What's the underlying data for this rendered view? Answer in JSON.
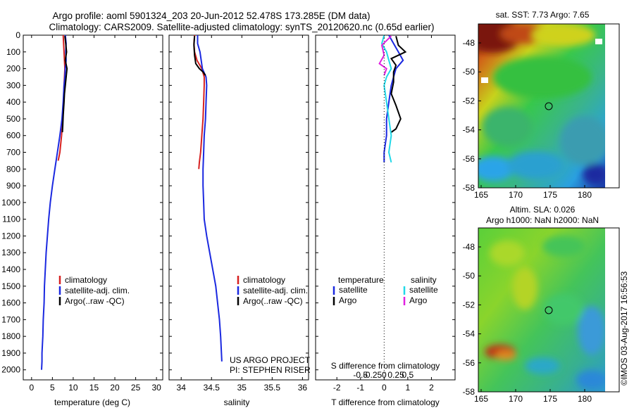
{
  "header": {
    "line1": "Argo profile: aoml 5901324_203 20-Jun-2012 52.478S 173.285E (DM data)",
    "line2": "Climatology: CARS2009. Satellite-adjusted climatology: synTS_20120620.nc (0.65d earlier)"
  },
  "colors": {
    "climatology": "#d62020",
    "satellite": "#1a28e0",
    "argo": "#000000",
    "argo_salinity_diff": "#e020e0",
    "satellite_salinity_diff": "#20d8e8"
  },
  "chart_data": [
    {
      "type": "line",
      "id": "temperature",
      "xlabel": "temperature (deg C)",
      "xticks": [
        0,
        5,
        10,
        15,
        20,
        25,
        30
      ],
      "xlim": [
        -2,
        31.5
      ],
      "yticks": [
        0,
        100,
        200,
        300,
        400,
        500,
        600,
        700,
        800,
        900,
        1000,
        1100,
        1200,
        1300,
        1400,
        1500,
        1600,
        1700,
        1800,
        1900,
        2000
      ],
      "ylim": [
        2060,
        0
      ],
      "legend": [
        "climatology",
        "satellite-adj. clim.",
        "Argo(..raw -QC)"
      ],
      "series": [
        {
          "name": "climatology",
          "color_key": "climatology",
          "x": [
            7.6,
            7.7,
            7.8,
            7.9,
            8.0,
            7.9,
            7.8,
            7.7,
            7.5,
            7.2,
            6.8,
            6.4
          ],
          "y": [
            0,
            50,
            100,
            150,
            200,
            250,
            300,
            400,
            500,
            600,
            700,
            750
          ]
        },
        {
          "name": "satellite-adj. clim.",
          "color_key": "satellite",
          "x": [
            8.1,
            8.3,
            8.2,
            8.3,
            8.1,
            8.0,
            7.8,
            7.6,
            7.3,
            6.8,
            6.2,
            5.6,
            5.0,
            4.5,
            4.1,
            3.8,
            3.5,
            3.3,
            3.1,
            3.0,
            2.8,
            2.7,
            2.6,
            2.5,
            2.5,
            2.4
          ],
          "y": [
            0,
            50,
            100,
            150,
            200,
            250,
            300,
            400,
            500,
            600,
            700,
            800,
            900,
            1000,
            1100,
            1200,
            1300,
            1400,
            1500,
            1600,
            1700,
            1800,
            1850,
            1900,
            1950,
            2000
          ]
        },
        {
          "name": "Argo(..raw -QC)",
          "color_key": "argo",
          "x": [
            8.0,
            8.2,
            8.4,
            8.1,
            8.5,
            8.3,
            8.1,
            7.9,
            7.8,
            7.6,
            7.5,
            7.4
          ],
          "y": [
            5,
            50,
            100,
            150,
            200,
            250,
            300,
            350,
            400,
            480,
            540,
            580
          ]
        }
      ]
    },
    {
      "type": "line",
      "id": "salinity",
      "xlabel": "salinity",
      "xticks": [
        34,
        34.5,
        35,
        35.5,
        36
      ],
      "xlim": [
        33.8,
        36.1
      ],
      "yticks": [
        0,
        100,
        200,
        300,
        400,
        500,
        600,
        700,
        800,
        900,
        1000,
        1100,
        1200,
        1300,
        1400,
        1500,
        1600,
        1700,
        1800,
        1900,
        2000
      ],
      "ylim": [
        2060,
        0
      ],
      "legend": [
        "climatology",
        "satellite-adj. clim.",
        "Argo(..raw -QC)"
      ],
      "series": [
        {
          "name": "climatology",
          "color_key": "climatology",
          "x": [
            34.22,
            34.21,
            34.22,
            34.26,
            34.34,
            34.38,
            34.38,
            34.37,
            34.36,
            34.34,
            34.32,
            34.3,
            34.29
          ],
          "y": [
            0,
            50,
            100,
            150,
            200,
            250,
            300,
            400,
            500,
            600,
            700,
            760,
            800
          ]
        },
        {
          "name": "satellite-adj. clim.",
          "color_key": "satellite",
          "x": [
            34.27,
            34.27,
            34.31,
            34.33,
            34.35,
            34.41,
            34.42,
            34.41,
            34.4,
            34.38,
            34.37,
            34.36,
            34.36,
            34.37,
            34.38,
            34.42,
            34.47,
            34.52,
            34.57,
            34.6,
            34.63,
            34.65,
            34.67
          ],
          "y": [
            0,
            50,
            100,
            150,
            200,
            250,
            300,
            400,
            500,
            600,
            700,
            800,
            900,
            1000,
            1100,
            1200,
            1300,
            1400,
            1500,
            1600,
            1700,
            1800,
            1950
          ]
        },
        {
          "name": "Argo(..raw -QC)",
          "color_key": "argo",
          "x": [
            34.22,
            34.21,
            34.22,
            34.24,
            34.3,
            34.36,
            34.4
          ],
          "y": [
            5,
            60,
            120,
            170,
            200,
            220,
            240
          ]
        }
      ]
    },
    {
      "type": "line",
      "id": "difference",
      "xlabel": "T difference from climatology",
      "xlabel_top": "S difference from climatology",
      "xticks_T": [
        -2,
        -1,
        0,
        1,
        2
      ],
      "xticks_S": [
        "-0.5",
        "-0.25",
        "0",
        "0.25",
        "0.5"
      ],
      "xlim": [
        -2.9,
        3.0
      ],
      "ylim": [
        2060,
        0
      ],
      "legend_left_title": "temperature",
      "legend_right_title": "salinity",
      "legend": [
        "satellite",
        "Argo",
        "satellite",
        "Argo"
      ],
      "series": [
        {
          "name": "satellite",
          "color_key": "satellite",
          "x": [
            0.2,
            0.4,
            0.6,
            0.8,
            0.5,
            0.4,
            0.3,
            0.2,
            0.1,
            0.1,
            0.0,
            0.0
          ],
          "y": [
            0,
            50,
            100,
            150,
            200,
            250,
            300,
            400,
            500,
            600,
            700,
            760
          ]
        },
        {
          "name": "Argo",
          "color_key": "argo",
          "x": [
            0.5,
            0.6,
            0.9,
            0.3,
            0.5,
            0.4,
            0.4,
            0.3,
            0.5,
            0.7,
            0.5,
            0.3
          ],
          "y": [
            5,
            60,
            100,
            140,
            180,
            220,
            280,
            350,
            420,
            500,
            560,
            580
          ]
        },
        {
          "name": "satellite",
          "color_key": "satellite_salinity_diff",
          "x": [
            0.0,
            -0.1,
            0.1,
            0.2,
            0.3,
            0.1,
            0.0,
            0.1,
            0.2,
            0.3,
            0.2,
            0.3
          ],
          "y": [
            0,
            50,
            100,
            150,
            200,
            250,
            300,
            400,
            500,
            600,
            700,
            760
          ]
        },
        {
          "name": "Argo",
          "color_key": "argo_salinity_diff",
          "x": [
            0.3,
            -0.1,
            0.0,
            -0.2,
            0.1,
            0.0
          ],
          "y": [
            5,
            60,
            120,
            170,
            200,
            240
          ]
        }
      ]
    }
  ],
  "maps": {
    "top": {
      "title": "sat. SST: 7.73 Argo: 7.65",
      "xticks": [
        "165",
        "170",
        "175",
        "180"
      ],
      "yticks": [
        "-48",
        "-50",
        "-52",
        "-54",
        "-56",
        "-58"
      ]
    },
    "bottom": {
      "title1": "Altim. SLA: 0.026",
      "title2": "Argo h1000: NaN h2000: NaN",
      "xticks": [
        "165",
        "170",
        "175",
        "180"
      ],
      "yticks": [
        "-48",
        "-50",
        "-52",
        "-54",
        "-56",
        "-58"
      ]
    }
  },
  "credits": {
    "project": "US ARGO PROJECT",
    "pi": "PI: STEPHEN RISER",
    "watermark": "©IMOS 03-Aug-2017 16:56:53"
  }
}
